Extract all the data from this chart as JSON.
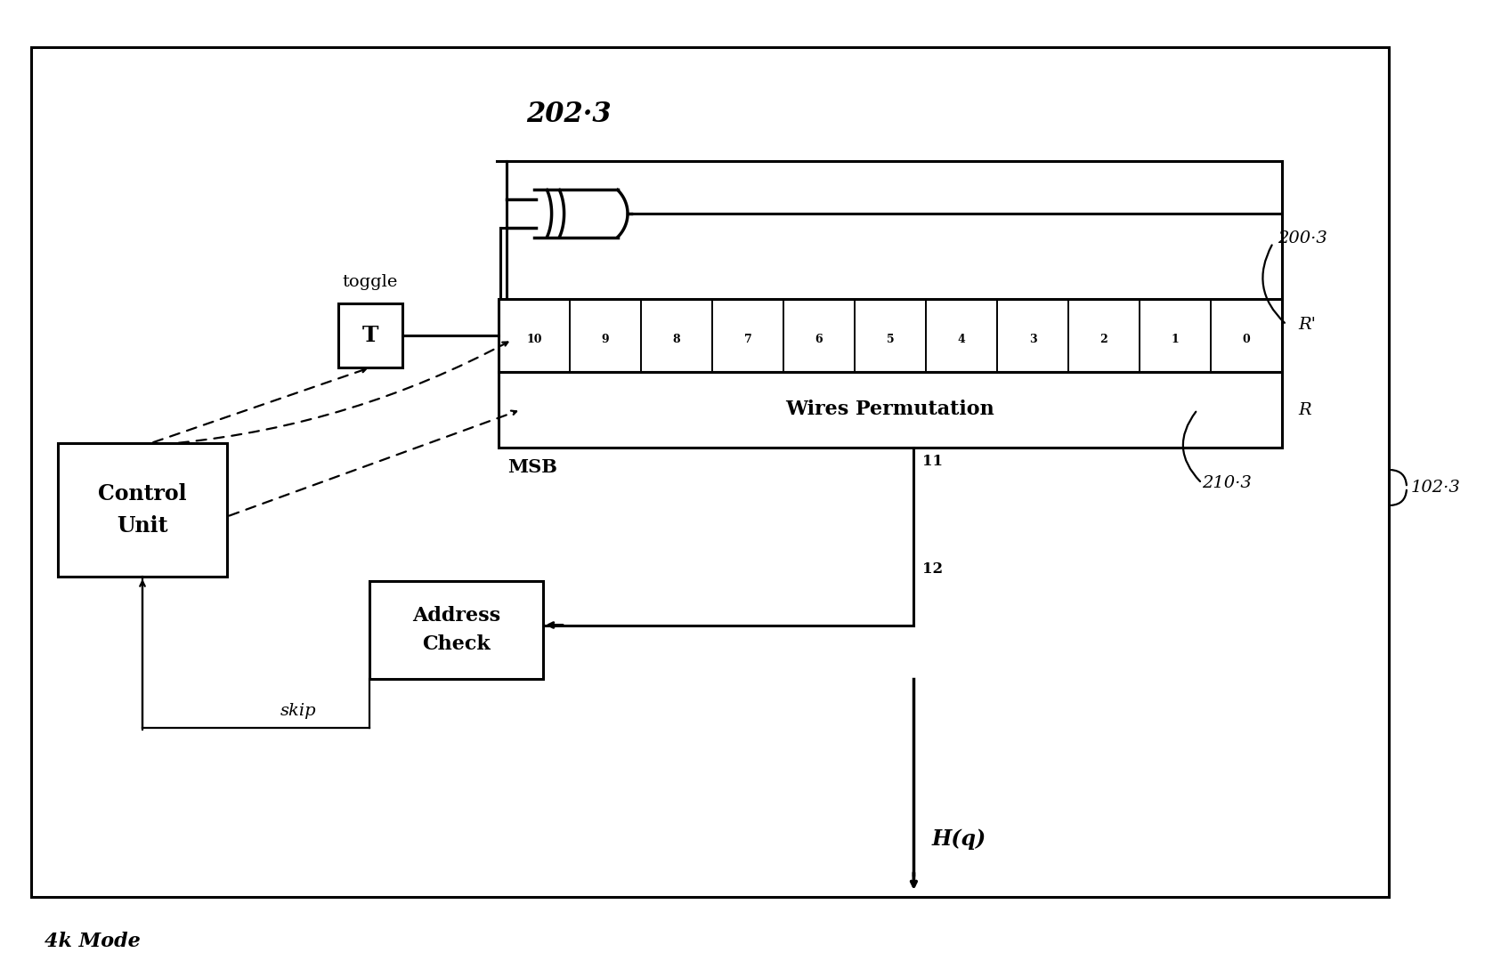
{
  "title": "4k Mode",
  "label_202_3": "202·3",
  "label_200_3": "200·3",
  "label_102_3": "102·3",
  "label_210_3": "210·3",
  "label_toggle": "toggle",
  "label_T": "T",
  "label_control": "Control\nUnit",
  "label_wires": "Wires Permutation",
  "label_MSB": "MSB",
  "label_R_prime": "R'",
  "label_R": "R",
  "label_skip": "skip",
  "label_address": "Address\nCheck",
  "label_Hq": "H(q)",
  "label_11": "11",
  "label_12": "12",
  "register_labels": [
    "10",
    "9",
    "8",
    "7",
    "6",
    "5",
    "4",
    "3",
    "2",
    "1",
    "0"
  ],
  "bg_color": "#ffffff",
  "lw": 2.2,
  "lw_thin": 1.6,
  "fs_label": 18,
  "fs_med": 14,
  "fs_small": 12,
  "fs_tiny": 10
}
